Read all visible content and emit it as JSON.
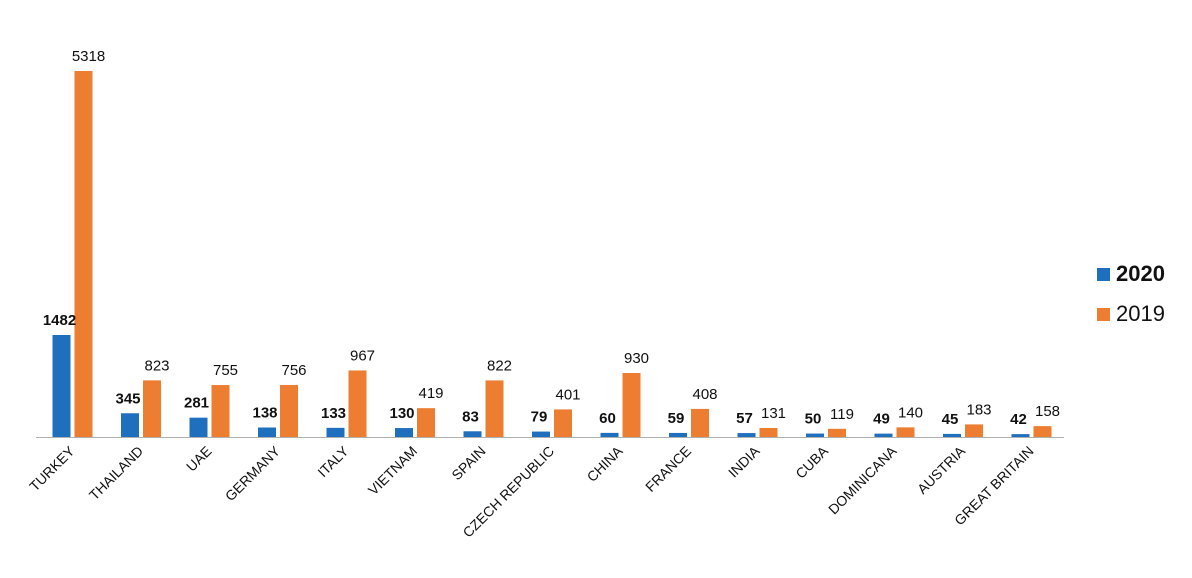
{
  "chart_data": {
    "type": "bar",
    "title": "",
    "xlabel": "",
    "ylabel": "",
    "ylim": [
      0,
      5318
    ],
    "grid": false,
    "legend_position": "right",
    "categories": [
      "TURKEY",
      "THAILAND",
      "UAE",
      "GERMANY",
      "ITALY",
      "VIETNAM",
      "SPAIN",
      "CZECH REPUBLIC",
      "CHINA",
      "FRANCE",
      "INDIA",
      "CUBA",
      "DOMINICANA",
      "AUSTRIA",
      "GREAT BRITAIN"
    ],
    "series": [
      {
        "name": "2020",
        "color": "#1f6fbf",
        "values": [
          1482,
          345,
          281,
          138,
          133,
          130,
          83,
          79,
          60,
          59,
          57,
          50,
          49,
          45,
          42
        ]
      },
      {
        "name": "2019",
        "color": "#ed7d31",
        "values": [
          5318,
          823,
          755,
          756,
          967,
          419,
          822,
          401,
          930,
          408,
          131,
          119,
          140,
          183,
          158
        ]
      }
    ]
  },
  "legend": {
    "items": [
      {
        "label": "2020",
        "color": "#1f6fbf"
      },
      {
        "label": "2019",
        "color": "#ed7d31"
      }
    ]
  }
}
